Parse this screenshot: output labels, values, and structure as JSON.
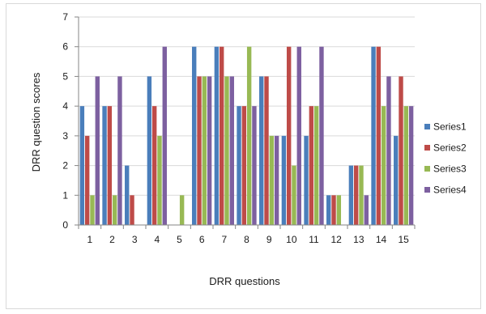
{
  "chart_data": {
    "type": "bar",
    "title": "",
    "xlabel": "DRR questions",
    "ylabel": "DRR question scores",
    "categories": [
      "1",
      "2",
      "3",
      "4",
      "5",
      "6",
      "7",
      "8",
      "9",
      "10",
      "11",
      "12",
      "13",
      "14",
      "15"
    ],
    "ylim": [
      0,
      7
    ],
    "yticks": [
      0,
      1,
      2,
      3,
      4,
      5,
      6,
      7
    ],
    "grid": true,
    "legend_position": "right",
    "series": [
      {
        "name": "Series1",
        "color": "#4a7ebb",
        "values": [
          4,
          4,
          2,
          5,
          0,
          6,
          6,
          4,
          5,
          3,
          3,
          1,
          2,
          6,
          3
        ]
      },
      {
        "name": "Series2",
        "color": "#be4b48",
        "values": [
          3,
          4,
          1,
          4,
          0,
          5,
          6,
          4,
          5,
          6,
          4,
          1,
          2,
          6,
          5
        ]
      },
      {
        "name": "Series3",
        "color": "#98b954",
        "values": [
          1,
          1,
          0,
          3,
          1,
          5,
          5,
          6,
          3,
          2,
          4,
          1,
          2,
          4,
          4
        ]
      },
      {
        "name": "Series4",
        "color": "#7d60a0",
        "values": [
          5,
          5,
          0,
          6,
          0,
          5,
          5,
          4,
          3,
          6,
          6,
          0,
          1,
          5,
          4
        ]
      }
    ]
  }
}
